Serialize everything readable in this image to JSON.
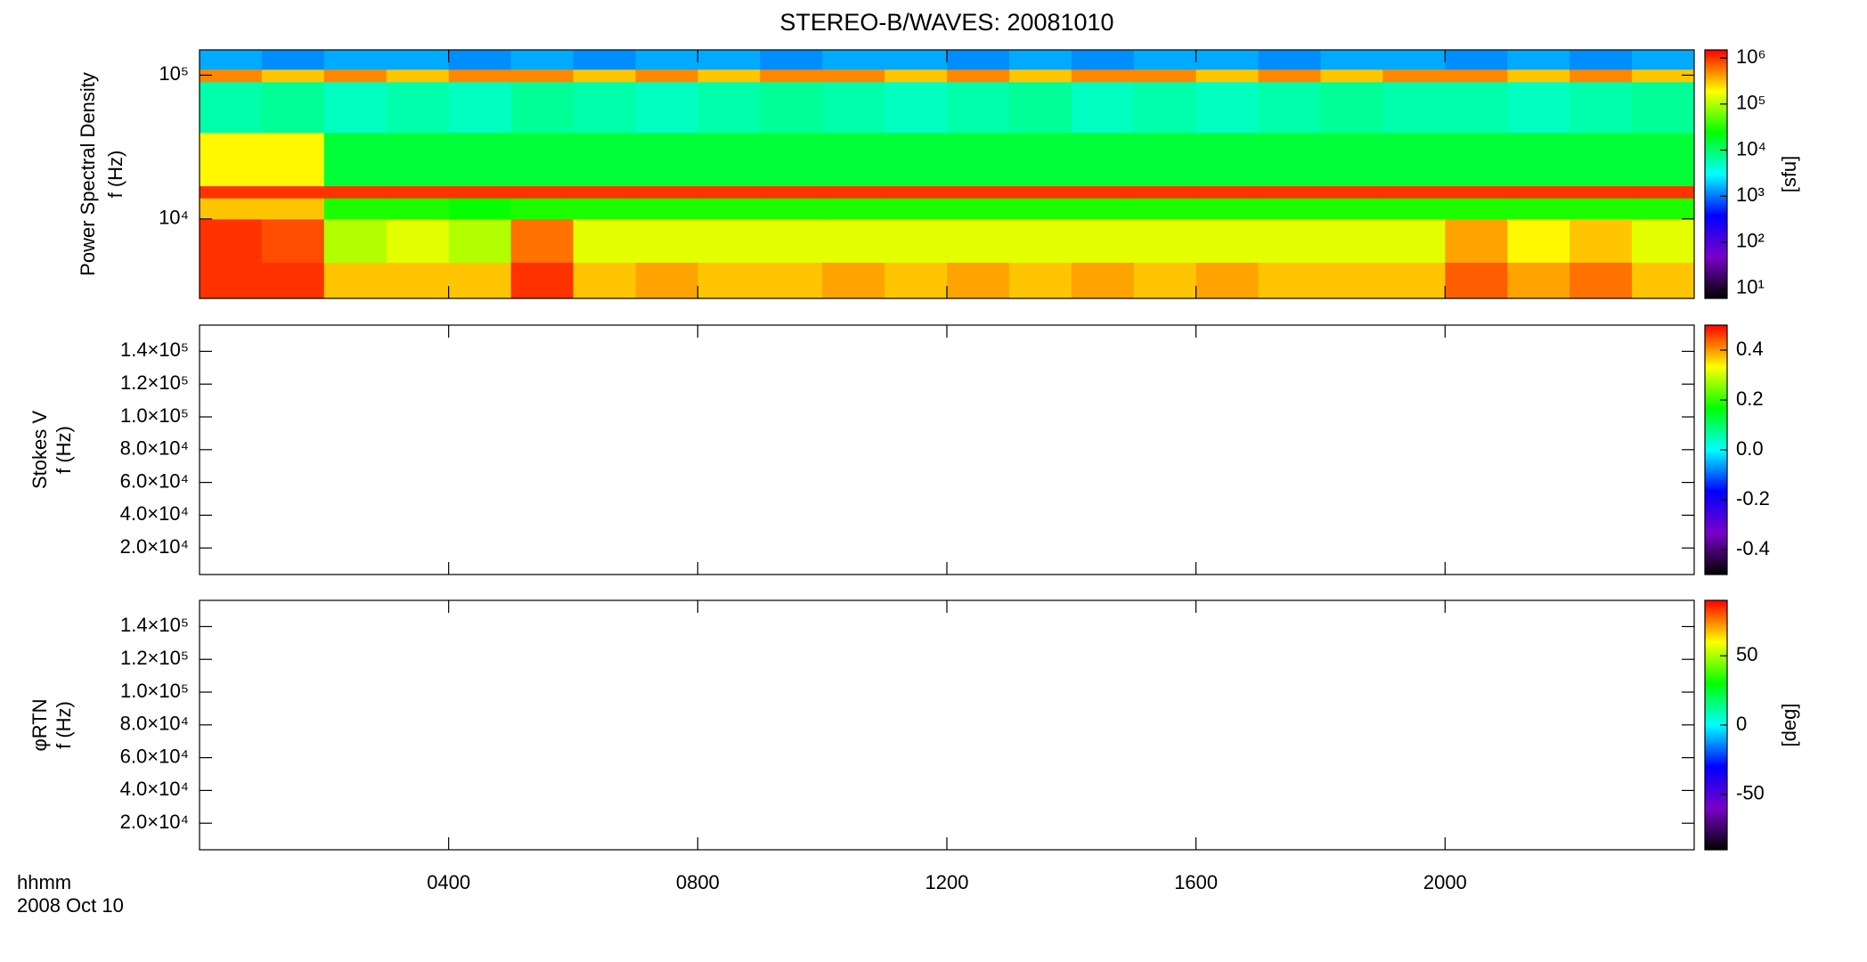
{
  "chart_data": [
    {
      "type": "heatmap",
      "title": "STEREO-B/WAVES: 20081010",
      "ylabel": [
        "Power Spectral Density",
        "f (Hz)"
      ],
      "ylog": true,
      "ylim": [
        2800,
        150000
      ],
      "yticks": [
        {
          "value": 10000,
          "label": "10⁴"
        },
        {
          "value": 100000,
          "label": "10⁵"
        }
      ],
      "xlim": [
        0,
        24
      ],
      "xbins": [
        0,
        1,
        2,
        3,
        4,
        5,
        6,
        7,
        8,
        9,
        10,
        11,
        12,
        13,
        14,
        15,
        16,
        17,
        18,
        19,
        20,
        21,
        22,
        23,
        24
      ],
      "ybins": [
        2800,
        5000,
        10000,
        14000,
        17000,
        40000,
        90000,
        110000,
        150000
      ],
      "z": [
        [
          1000000,
          1000000,
          300000,
          300000,
          300000,
          1000000,
          300000,
          400000,
          300000,
          300000,
          400000,
          300000,
          400000,
          300000,
          400000,
          300000,
          400000,
          300000,
          300000,
          300000,
          700000,
          400000,
          600000,
          300000
        ],
        [
          1000000,
          800000,
          100000,
          150000,
          100000,
          600000,
          150000,
          150000,
          150000,
          150000,
          150000,
          150000,
          150000,
          150000,
          150000,
          150000,
          150000,
          150000,
          150000,
          150000,
          400000,
          200000,
          300000,
          150000
        ],
        [
          300000,
          300000,
          30000,
          30000,
          25000,
          30000,
          30000,
          30000,
          30000,
          30000,
          30000,
          30000,
          30000,
          30000,
          30000,
          30000,
          30000,
          30000,
          30000,
          30000,
          30000,
          30000,
          30000,
          30000
        ],
        [
          1000000,
          1000000,
          1000000,
          1000000,
          1000000,
          1000000,
          1000000,
          1000000,
          1000000,
          1000000,
          1000000,
          1000000,
          1000000,
          1000000,
          1000000,
          1000000,
          1000000,
          1000000,
          1000000,
          1000000,
          1000000,
          1000000,
          1000000,
          1000000
        ],
        [
          200000,
          200000,
          15000,
          15000,
          15000,
          15000,
          15000,
          15000,
          15000,
          15000,
          15000,
          15000,
          15000,
          15000,
          15000,
          15000,
          15000,
          15000,
          15000,
          15000,
          15000,
          15000,
          15000,
          15000
        ],
        [
          6000,
          7000,
          5000,
          6000,
          5000,
          7000,
          6000,
          5000,
          6000,
          7000,
          6000,
          5000,
          6000,
          7000,
          5000,
          6000,
          5000,
          6000,
          7000,
          6000,
          6000,
          5000,
          6000,
          7000
        ],
        [
          500000,
          300000,
          500000,
          300000,
          500000,
          500000,
          300000,
          500000,
          300000,
          500000,
          500000,
          300000,
          500000,
          300000,
          500000,
          500000,
          300000,
          500000,
          300000,
          500000,
          500000,
          300000,
          500000,
          300000
        ],
        [
          1500,
          1200,
          1500,
          1500,
          1200,
          1500,
          1200,
          1500,
          1500,
          1200,
          1500,
          1500,
          1200,
          1500,
          1200,
          1500,
          1500,
          1200,
          1500,
          1500,
          1200,
          1500,
          1200,
          1500
        ]
      ],
      "zlog": true,
      "zlim": [
        6,
        1500000
      ],
      "zticks": [
        {
          "value": 10,
          "label": "10¹"
        },
        {
          "value": 100,
          "label": "10²"
        },
        {
          "value": 1000,
          "label": "10³"
        },
        {
          "value": 10000,
          "label": "10⁴"
        },
        {
          "value": 100000,
          "label": "10⁵"
        },
        {
          "value": 1000000,
          "label": "10⁶"
        }
      ],
      "zlabel": "[sfu]",
      "colorscale": [
        "#000000",
        "#7a00c8",
        "#0000ff",
        "#00ffff",
        "#00ff00",
        "#ffff00",
        "#ff0000"
      ]
    },
    {
      "type": "heatmap",
      "ylabel": [
        "Stokes V",
        "f (Hz)"
      ],
      "ylim": [
        3800,
        156000
      ],
      "yticks": [
        {
          "value": 20000,
          "label": "2.0×10⁴"
        },
        {
          "value": 40000,
          "label": "4.0×10⁴"
        },
        {
          "value": 60000,
          "label": "6.0×10⁴"
        },
        {
          "value": 80000,
          "label": "8.0×10⁴"
        },
        {
          "value": 100000,
          "label": "1.0×10⁵"
        },
        {
          "value": 120000,
          "label": "1.2×10⁵"
        },
        {
          "value": 140000,
          "label": "1.4×10⁵"
        }
      ],
      "xlim": [
        0,
        24
      ],
      "zlim": [
        -0.5,
        0.5
      ],
      "zticks": [
        -0.4,
        -0.2,
        {
          "value": 0,
          "label": "0.0"
        },
        0.2,
        0.4
      ],
      "colorscale": [
        "#000000",
        "#7a00c8",
        "#0000ff",
        "#00ffff",
        "#00ff00",
        "#ffff00",
        "#ff0000"
      ]
    },
    {
      "type": "heatmap",
      "ylabel": [
        "φRTN",
        "f (Hz)"
      ],
      "ylim": [
        3800,
        156000
      ],
      "yticks": [
        {
          "value": 20000,
          "label": "2.0×10⁴"
        },
        {
          "value": 40000,
          "label": "4.0×10⁴"
        },
        {
          "value": 60000,
          "label": "6.0×10⁴"
        },
        {
          "value": 80000,
          "label": "8.0×10⁴"
        },
        {
          "value": 100000,
          "label": "1.0×10⁵"
        },
        {
          "value": 120000,
          "label": "1.2×10⁵"
        },
        {
          "value": 140000,
          "label": "1.4×10⁵"
        }
      ],
      "xlim": [
        0,
        24
      ],
      "xticks": [
        {
          "value": 4,
          "label": "0400"
        },
        {
          "value": 8,
          "label": "0800"
        },
        {
          "value": 12,
          "label": "1200"
        },
        {
          "value": 16,
          "label": "1600"
        },
        {
          "value": 20,
          "label": "2000"
        }
      ],
      "xlabel": "hhmm",
      "date": "2008 Oct 10",
      "zlim": [
        -90,
        90
      ],
      "zticks": [
        -50,
        0,
        50
      ],
      "zlabel": "[deg]",
      "colorscale": [
        "#000000",
        "#7a00c8",
        "#0000ff",
        "#00ffff",
        "#00ff00",
        "#ffff00",
        "#ff0000"
      ]
    }
  ]
}
